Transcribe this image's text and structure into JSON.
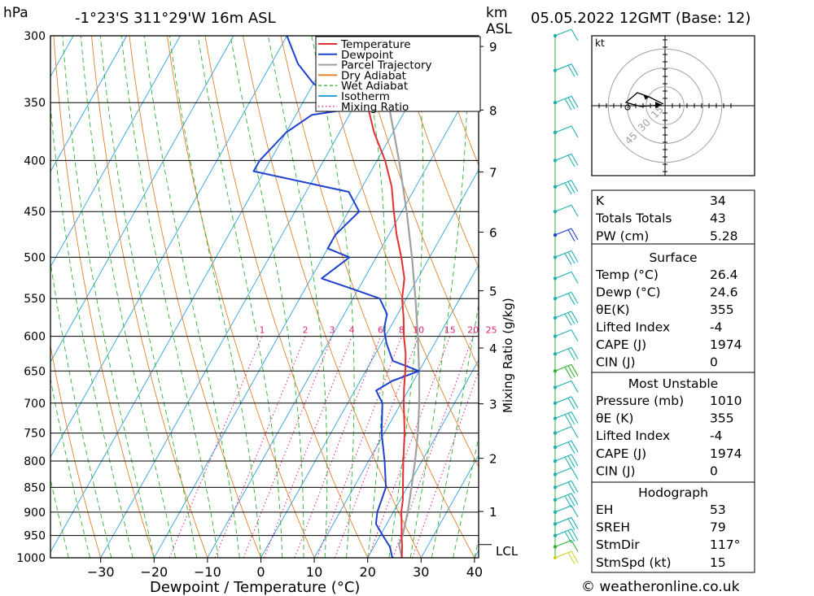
{
  "header": {
    "hpa_label": "hPa",
    "location": "-1°23'S  311°29'W  16m  ASL",
    "km_label": "km",
    "asl_label": "ASL",
    "datetime": "05.05.2022  12GMT  (Base: 12)"
  },
  "x_axis_label": "Dewpoint / Temperature (°C)",
  "y_axis_right_label": "Mixing Ratio (g/kg)",
  "lcl_label": "LCL",
  "footer": "© weatheronline.co.uk",
  "legend": [
    {
      "label": "Temperature",
      "color": "#e03030",
      "style": "solid"
    },
    {
      "label": "Dewpoint",
      "color": "#2040d0",
      "style": "solid"
    },
    {
      "label": "Parcel Trajectory",
      "color": "#a0a0a0",
      "style": "solid"
    },
    {
      "label": "Dry Adiabat",
      "color": "#e08030",
      "style": "solid"
    },
    {
      "label": "Wet Adiabat",
      "color": "#30b030",
      "style": "dashed"
    },
    {
      "label": "Isotherm",
      "color": "#30a0e0",
      "style": "solid"
    },
    {
      "label": "Mixing Ratio",
      "color": "#e0207a",
      "style": "dotted"
    }
  ],
  "hodograph": {
    "unit_label": "kt",
    "ring_labels": [
      "15",
      "30",
      "45"
    ]
  },
  "indices": {
    "basic": [
      {
        "label": "K",
        "value": "34"
      },
      {
        "label": "Totals Totals",
        "value": "43"
      },
      {
        "label": "PW (cm)",
        "value": "5.28"
      }
    ],
    "surface_title": "Surface",
    "surface": [
      {
        "label": "Temp (°C)",
        "value": "26.4"
      },
      {
        "label": "Dewp (°C)",
        "value": "24.6"
      },
      {
        "label": "θE(K)",
        "value": "355"
      },
      {
        "label": "Lifted Index",
        "value": "-4"
      },
      {
        "label": "CAPE (J)",
        "value": "1974"
      },
      {
        "label": "CIN (J)",
        "value": "0"
      }
    ],
    "unstable_title": "Most Unstable",
    "unstable": [
      {
        "label": "Pressure (mb)",
        "value": "1010"
      },
      {
        "label": "θE (K)",
        "value": "355"
      },
      {
        "label": "Lifted Index",
        "value": "-4"
      },
      {
        "label": "CAPE (J)",
        "value": "1974"
      },
      {
        "label": "CIN (J)",
        "value": "0"
      }
    ],
    "hodograph_title": "Hodograph",
    "hodo": [
      {
        "label": "EH",
        "value": "53"
      },
      {
        "label": "SREH",
        "value": "79"
      },
      {
        "label": "StmDir",
        "value": "117°"
      },
      {
        "label": "StmSpd (kt)",
        "value": "15"
      }
    ]
  },
  "chart_data": {
    "type": "line",
    "title": "-1°23'S  311°29'W  16m  ASL",
    "xlabel": "Dewpoint / Temperature (°C)",
    "ylabel": "hPa",
    "y_scale": "log-pressure",
    "ylim": [
      1000,
      300
    ],
    "xlim": [
      -40,
      40
    ],
    "pressure_ticks": [
      300,
      350,
      400,
      450,
      500,
      550,
      600,
      650,
      700,
      750,
      800,
      850,
      900,
      950,
      1000
    ],
    "temp_ticks": [
      -30,
      -20,
      -10,
      0,
      10,
      20,
      30,
      40
    ],
    "km_ticks": [
      1,
      2,
      3,
      4,
      5,
      6,
      7,
      8,
      9
    ],
    "mixing_ratio_labels": [
      1,
      2,
      3,
      4,
      6,
      8,
      10,
      15,
      20,
      25
    ],
    "series": [
      {
        "name": "Temperature",
        "points": [
          [
            1000,
            26.4
          ],
          [
            975,
            25.3
          ],
          [
            950,
            24.0
          ],
          [
            925,
            22.8
          ],
          [
            900,
            21.5
          ],
          [
            875,
            20.5
          ],
          [
            850,
            19.2
          ],
          [
            800,
            16.5
          ],
          [
            750,
            13.8
          ],
          [
            700,
            10.5
          ],
          [
            675,
            8.9
          ],
          [
            650,
            7.4
          ],
          [
            625,
            5.7
          ],
          [
            600,
            3.5
          ],
          [
            575,
            1.5
          ],
          [
            550,
            -0.8
          ],
          [
            525,
            -2.5
          ],
          [
            500,
            -5.3
          ],
          [
            475,
            -8.5
          ],
          [
            450,
            -11.5
          ],
          [
            425,
            -14.5
          ],
          [
            400,
            -18.5
          ],
          [
            375,
            -23.5
          ],
          [
            350,
            -28.0
          ],
          [
            325,
            -34.0
          ],
          [
            300,
            -40.0
          ]
        ]
      },
      {
        "name": "Dewpoint",
        "points": [
          [
            1000,
            24.6
          ],
          [
            975,
            23.0
          ],
          [
            950,
            20.5
          ],
          [
            925,
            18.0
          ],
          [
            900,
            17.0
          ],
          [
            850,
            16.0
          ],
          [
            800,
            13.0
          ],
          [
            750,
            9.5
          ],
          [
            700,
            6.5
          ],
          [
            680,
            4.0
          ],
          [
            665,
            6.0
          ],
          [
            650,
            10.0
          ],
          [
            635,
            4.0
          ],
          [
            610,
            1.0
          ],
          [
            590,
            -1.0
          ],
          [
            570,
            -2.0
          ],
          [
            550,
            -5.0
          ],
          [
            540,
            -10.0
          ],
          [
            525,
            -18.0
          ],
          [
            500,
            -15.0
          ],
          [
            490,
            -20.0
          ],
          [
            475,
            -20.0
          ],
          [
            450,
            -18.0
          ],
          [
            430,
            -22.0
          ],
          [
            410,
            -42.0
          ],
          [
            400,
            -42.0
          ],
          [
            375,
            -40.0
          ],
          [
            360,
            -37.0
          ],
          [
            355,
            -30.0
          ],
          [
            345,
            -35.0
          ],
          [
            335,
            -40.0
          ],
          [
            320,
            -45.0
          ],
          [
            300,
            -50.0
          ]
        ]
      },
      {
        "name": "Parcel Trajectory",
        "points": [
          [
            1000,
            26.4
          ],
          [
            970,
            24.5
          ],
          [
            950,
            24.2
          ],
          [
            900,
            22.7
          ],
          [
            850,
            20.8
          ],
          [
            800,
            18.7
          ],
          [
            750,
            16.3
          ],
          [
            700,
            13.4
          ],
          [
            650,
            10.0
          ],
          [
            600,
            6.1
          ],
          [
            550,
            1.7
          ],
          [
            500,
            -3.3
          ],
          [
            450,
            -9.1
          ],
          [
            400,
            -15.9
          ],
          [
            375,
            -19.8
          ],
          [
            350,
            -24.0
          ],
          [
            300,
            -34.0
          ]
        ]
      }
    ],
    "lcl_pressure": 970
  }
}
